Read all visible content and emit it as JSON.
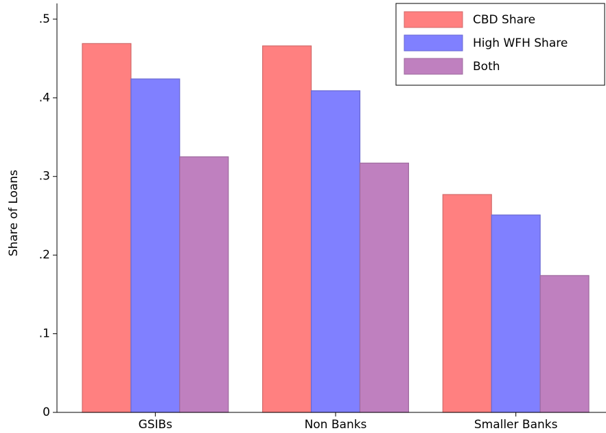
{
  "chart_data": {
    "type": "bar",
    "y_label": "Share of Loans",
    "categories": [
      "GSIBs",
      "Non Banks",
      "Smaller Banks"
    ],
    "series": [
      {
        "name": "CBD Share",
        "color": "#ff8080",
        "values": [
          0.469,
          0.466,
          0.277
        ]
      },
      {
        "name": "High WFH Share",
        "color": "#8080ff",
        "values": [
          0.424,
          0.409,
          0.251
        ]
      },
      {
        "name": "Both",
        "color": "#bf80bf",
        "values": [
          0.325,
          0.317,
          0.174
        ]
      }
    ],
    "ylim": [
      0,
      0.52
    ],
    "yticks": [
      0,
      {
        "value": 0.1,
        "label": ".1"
      },
      {
        "value": 0.2,
        "label": ".2"
      },
      {
        "value": 0.3,
        "label": ".3"
      },
      {
        "value": 0.4,
        "label": ".4"
      },
      {
        "value": 0.5,
        "label": ".5"
      }
    ],
    "legend": "top-right"
  }
}
